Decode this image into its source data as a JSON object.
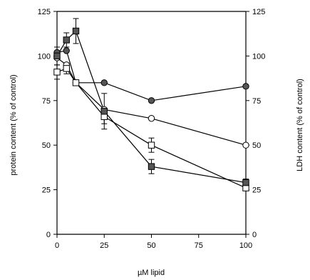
{
  "chart_data": {
    "type": "line",
    "xlabel": "µM lipid",
    "ylabel_left": "protein content (% of control)",
    "ylabel_right": "LDH content (% of control)",
    "x_ticks": [
      0,
      25,
      50,
      75,
      100
    ],
    "x_tick_labels": [
      "0",
      "25",
      "50",
      "75",
      "100"
    ],
    "y_ticks": [
      0,
      25,
      50,
      75,
      100,
      125
    ],
    "y_tick_labels": [
      "0",
      "25",
      "50",
      "75",
      "100",
      "125"
    ],
    "xlim": [
      0,
      100
    ],
    "ylim": [
      0,
      125
    ],
    "grid": false,
    "series": [
      {
        "marker": "circle-filled",
        "x": [
          0,
          5,
          10,
          25,
          50,
          100
        ],
        "y": [
          102,
          103,
          85,
          85,
          75,
          83
        ],
        "err": [
          0,
          0,
          0,
          0,
          0,
          0
        ]
      },
      {
        "marker": "circle-open",
        "x": [
          0,
          5,
          10,
          25,
          50,
          100
        ],
        "y": [
          99,
          95,
          85,
          70,
          65,
          50
        ],
        "err": [
          0,
          0,
          0,
          0,
          0,
          0
        ]
      },
      {
        "marker": "square-open",
        "x": [
          0,
          5,
          10,
          25,
          50,
          100
        ],
        "y": [
          91,
          93,
          85,
          66,
          50,
          26
        ],
        "err": [
          4,
          3,
          0,
          4,
          4,
          0
        ]
      },
      {
        "marker": "square-filled",
        "x": [
          0,
          5,
          10,
          25,
          50,
          100
        ],
        "y": [
          100,
          109,
          114,
          69,
          38,
          29
        ],
        "err": [
          5,
          4,
          7,
          10,
          4,
          2
        ]
      }
    ],
    "colors": {
      "ink": "#000000",
      "marker_fill": "#555555",
      "background": "#ffffff"
    }
  }
}
